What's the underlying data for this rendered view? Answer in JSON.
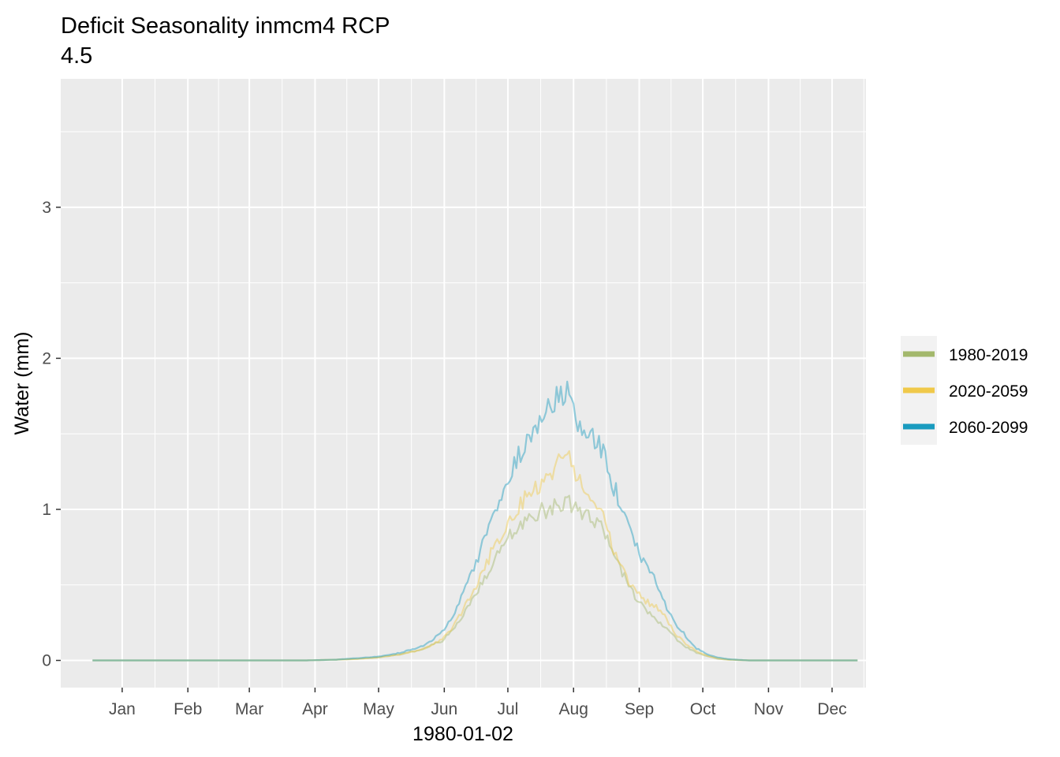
{
  "chart_data": {
    "type": "line",
    "title": "Deficit Seasonality inmcm4 RCP",
    "title_line2": "4.5",
    "xlabel": "1980-01-02",
    "ylabel": "Water (mm)",
    "x_unit": "day of year",
    "xlim": [
      -15,
      365
    ],
    "ylim": [
      -0.18,
      3.85
    ],
    "yticks": [
      0,
      1,
      2,
      3
    ],
    "month_ticks": [
      {
        "label": "Jan",
        "day": 14
      },
      {
        "label": "Feb",
        "day": 45
      },
      {
        "label": "Mar",
        "day": 74
      },
      {
        "label": "Apr",
        "day": 105
      },
      {
        "label": "May",
        "day": 135
      },
      {
        "label": "Jun",
        "day": 166
      },
      {
        "label": "Jul",
        "day": 196
      },
      {
        "label": "Aug",
        "day": 227
      },
      {
        "label": "Sep",
        "day": 258
      },
      {
        "label": "Oct",
        "day": 288
      },
      {
        "label": "Nov",
        "day": 319
      },
      {
        "label": "Dec",
        "day": 349
      }
    ],
    "grid": true,
    "legend_position": "right",
    "series": [
      {
        "name": "1980-2019",
        "color": "#a3b86c",
        "points": [
          [
            0,
            0
          ],
          [
            100,
            0
          ],
          [
            115,
            0.005
          ],
          [
            125,
            0.01
          ],
          [
            135,
            0.02
          ],
          [
            145,
            0.04
          ],
          [
            155,
            0.07
          ],
          [
            160,
            0.1
          ],
          [
            165,
            0.13
          ],
          [
            170,
            0.2
          ],
          [
            175,
            0.3
          ],
          [
            180,
            0.42
          ],
          [
            185,
            0.55
          ],
          [
            190,
            0.66
          ],
          [
            195,
            0.78
          ],
          [
            200,
            0.88
          ],
          [
            205,
            0.95
          ],
          [
            210,
            0.98
          ],
          [
            215,
            0.99
          ],
          [
            220,
            1.03
          ],
          [
            225,
            1.05
          ],
          [
            230,
            0.98
          ],
          [
            235,
            0.94
          ],
          [
            240,
            0.88
          ],
          [
            245,
            0.78
          ],
          [
            250,
            0.58
          ],
          [
            255,
            0.45
          ],
          [
            260,
            0.35
          ],
          [
            265,
            0.28
          ],
          [
            270,
            0.22
          ],
          [
            275,
            0.15
          ],
          [
            280,
            0.09
          ],
          [
            285,
            0.05
          ],
          [
            290,
            0.03
          ],
          [
            295,
            0.01
          ],
          [
            300,
            0.005
          ],
          [
            310,
            0
          ],
          [
            361,
            0
          ]
        ]
      },
      {
        "name": "2020-2059",
        "color": "#f0c94a",
        "points": [
          [
            0,
            0
          ],
          [
            100,
            0
          ],
          [
            115,
            0.005
          ],
          [
            125,
            0.01
          ],
          [
            135,
            0.02
          ],
          [
            145,
            0.04
          ],
          [
            155,
            0.07
          ],
          [
            160,
            0.1
          ],
          [
            165,
            0.14
          ],
          [
            170,
            0.22
          ],
          [
            175,
            0.34
          ],
          [
            180,
            0.47
          ],
          [
            185,
            0.62
          ],
          [
            190,
            0.76
          ],
          [
            195,
            0.9
          ],
          [
            200,
            1.0
          ],
          [
            205,
            1.1
          ],
          [
            210,
            1.16
          ],
          [
            215,
            1.2
          ],
          [
            220,
            1.3
          ],
          [
            223,
            1.43
          ],
          [
            226,
            1.3
          ],
          [
            230,
            1.2
          ],
          [
            235,
            1.12
          ],
          [
            240,
            1.0
          ],
          [
            245,
            0.78
          ],
          [
            250,
            0.6
          ],
          [
            255,
            0.48
          ],
          [
            260,
            0.4
          ],
          [
            265,
            0.36
          ],
          [
            270,
            0.3
          ],
          [
            275,
            0.18
          ],
          [
            280,
            0.11
          ],
          [
            285,
            0.06
          ],
          [
            290,
            0.03
          ],
          [
            295,
            0.015
          ],
          [
            300,
            0.005
          ],
          [
            310,
            0
          ],
          [
            361,
            0
          ]
        ]
      },
      {
        "name": "2060-2099",
        "color": "#1a9bbf",
        "points": [
          [
            0,
            0
          ],
          [
            100,
            0
          ],
          [
            115,
            0.005
          ],
          [
            125,
            0.015
          ],
          [
            135,
            0.025
          ],
          [
            145,
            0.05
          ],
          [
            155,
            0.09
          ],
          [
            160,
            0.13
          ],
          [
            165,
            0.19
          ],
          [
            170,
            0.29
          ],
          [
            175,
            0.45
          ],
          [
            180,
            0.6
          ],
          [
            185,
            0.8
          ],
          [
            190,
            0.98
          ],
          [
            195,
            1.15
          ],
          [
            200,
            1.32
          ],
          [
            205,
            1.5
          ],
          [
            210,
            1.58
          ],
          [
            215,
            1.66
          ],
          [
            220,
            1.73
          ],
          [
            224,
            1.75
          ],
          [
            228,
            1.62
          ],
          [
            232,
            1.5
          ],
          [
            236,
            1.45
          ],
          [
            240,
            1.4
          ],
          [
            245,
            1.2
          ],
          [
            250,
            0.98
          ],
          [
            255,
            0.8
          ],
          [
            260,
            0.66
          ],
          [
            265,
            0.54
          ],
          [
            270,
            0.38
          ],
          [
            275,
            0.25
          ],
          [
            280,
            0.16
          ],
          [
            285,
            0.08
          ],
          [
            290,
            0.04
          ],
          [
            295,
            0.02
          ],
          [
            300,
            0.008
          ],
          [
            310,
            0
          ],
          [
            361,
            0
          ]
        ]
      }
    ]
  }
}
